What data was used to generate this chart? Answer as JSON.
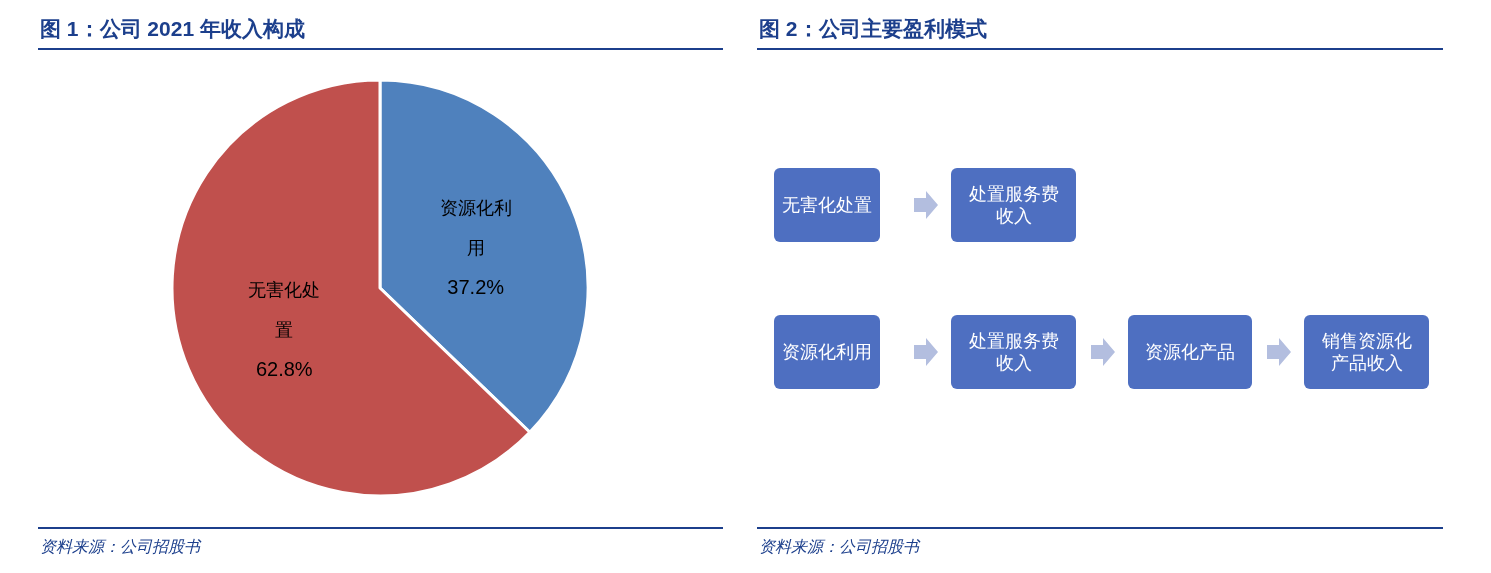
{
  "chart_data": [
    {
      "type": "pie",
      "title": "图 1：公司 2021 年收入构成",
      "categories": [
        "资源化利用",
        "无害化处置"
      ],
      "values": [
        37.2,
        62.8
      ],
      "value_labels": [
        "37.2%",
        "62.8%"
      ],
      "colors": [
        "#4f81bd",
        "#c0504d"
      ],
      "annotations": [
        "资料来源：公司招股书"
      ]
    },
    {
      "type": "other",
      "title": "图 2：公司主要盈利模式",
      "annotations": [
        "无害化处置",
        "处置服务费收入",
        "资源化利用",
        "处置服务费收入",
        "资源化产品",
        "销售资源化产品收入",
        "资料来源：公司招股书"
      ]
    }
  ]
}
